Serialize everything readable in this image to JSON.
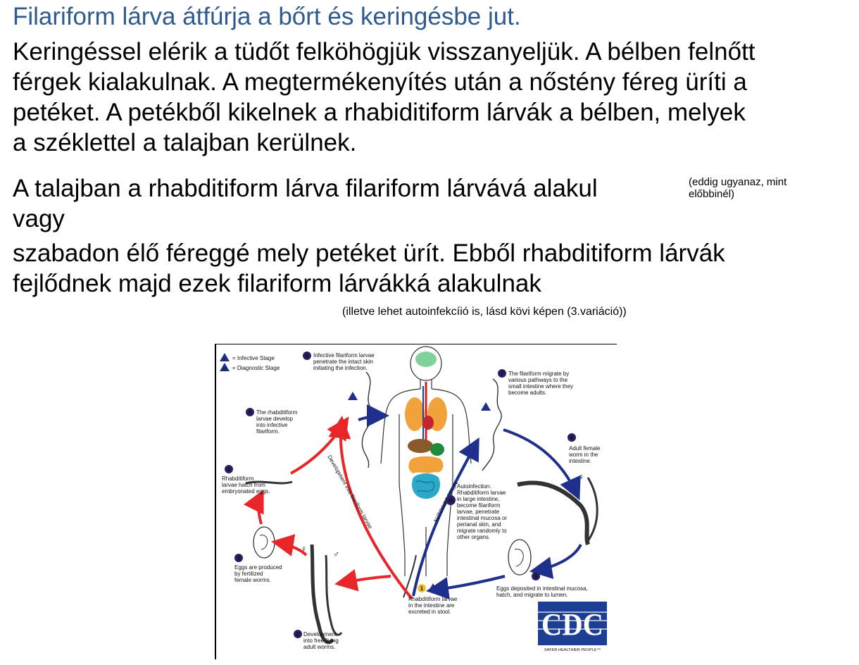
{
  "slide": {
    "title": "Filariform lárva átfúrja a bőrt és keringésbe jut.",
    "para1": [
      "Keringéssel elérik a tüdőt felköhögjük visszanyeljük. A bélben felnőtt",
      "férgek kialakulnak. A megtermékenyítés után a nőstény féreg üríti a",
      "petéket. A petékből kikelnek a rhabiditiform lárvák a bélben, melyek",
      "a széklettel a talajban kerülnek."
    ],
    "para2_line1": "A talajban a rhabditiform lárva filariform lárvává alakul",
    "para2_line2": "vagy",
    "note1": [
      "(eddig ugyanaz, mint",
      "előbbinél)"
    ],
    "para3": [
      "szabadon élő féreggé mely petéket ürít. Ebből rhabditiform lárvák",
      "fejlődnek majd ezek filariform lárvákká alakulnak"
    ],
    "note2": "(illetve lehet autoinfekcíió is, lásd kövi képen (3.variáció))"
  },
  "diagram": {
    "legend": {
      "infective_symbol": "i",
      "infective_label": "= Infective Stage",
      "diagnostic_symbol": "d",
      "diagnostic_label": "= Diagnostic Stage"
    },
    "steps": [
      {
        "num": "1",
        "lines": [
          "Rhabditiform larvae",
          "in the intestine are",
          "excreted in stool."
        ]
      },
      {
        "num": "2",
        "lines": [
          "Development",
          "into free-living",
          "adult worms."
        ]
      },
      {
        "num": "3",
        "lines": [
          "Eggs are produced",
          "by fertilized",
          "female worms."
        ]
      },
      {
        "num": "4",
        "lines": [
          "Rhabditiform",
          "larvae hatch from",
          "embryonated eggs."
        ]
      },
      {
        "num": "5",
        "lines": [
          "The rhabditiform",
          "larvae develop",
          "into infective",
          "filariform."
        ]
      },
      {
        "num": "6",
        "lines": [
          "Infective filariform larvae",
          "penetrate the intact skin",
          "initiating the infection."
        ]
      },
      {
        "num": "7",
        "lines": [
          "The filariform migrate by",
          "various pathways to the",
          "small intestine where they",
          "become adults."
        ]
      },
      {
        "num": "8",
        "lines": [
          "Adult female",
          "worm in the",
          "intestine."
        ]
      },
      {
        "num": "9",
        "lines": [
          "Eggs deposited in intestinal mucosa,",
          "hatch, and migrate to lumen."
        ]
      },
      {
        "num": "10",
        "lines": [
          "Autoinfection:",
          "Rhabditiform larvae",
          "in large intestine,",
          "become filariform",
          "larvae, penetrate",
          "intestinal mucosa or",
          "perianal skin, and",
          "migrate randomly to",
          "other organs."
        ]
      }
    ],
    "path_labels": {
      "development": "Development into filariform larvae",
      "autoinfection": "AUTOINFECTION"
    },
    "sex_symbols": {
      "female": "♀",
      "male": "♂"
    },
    "cdc": {
      "logo_text": "CDC",
      "tagline": "SAFER·HEALTHIER·PEOPLE™"
    },
    "colors": {
      "red_arrow": "#e8262a",
      "blue_arrow": "#1f2f8c",
      "step_circle": "#2b1f63",
      "diagnostic_step": "#f2c12e",
      "cdc_blue": "#1c3f94"
    }
  }
}
